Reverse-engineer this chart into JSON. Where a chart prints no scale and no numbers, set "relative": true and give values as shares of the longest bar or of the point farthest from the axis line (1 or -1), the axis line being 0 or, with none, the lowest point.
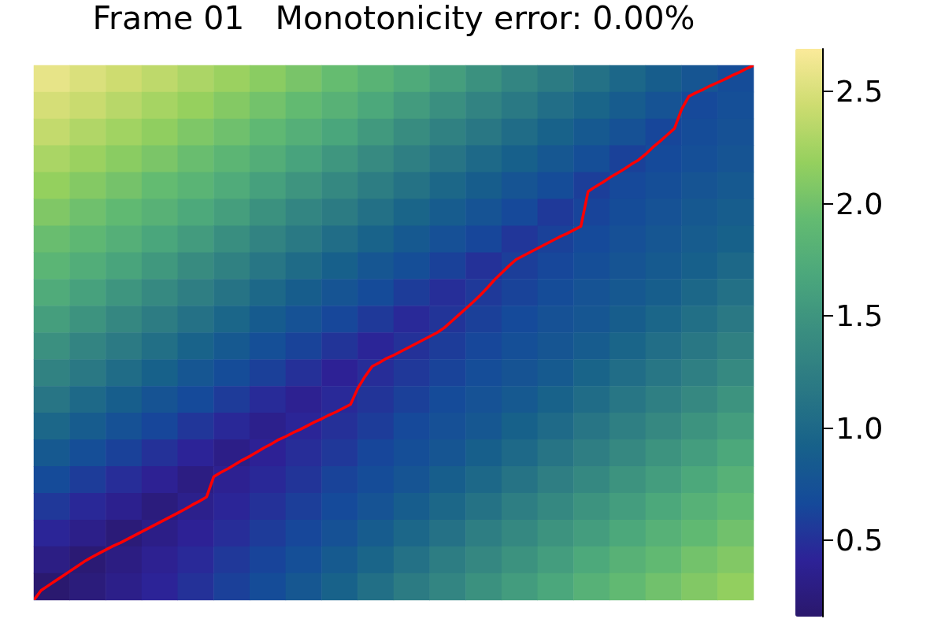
{
  "chart_data": [
    {
      "type": "heatmap",
      "title": "Frame 01   Monotonicity error: 0.00%",
      "categories": [
        null,
        null,
        null,
        null,
        null,
        null,
        null,
        null,
        null,
        null,
        null,
        null,
        null,
        null,
        null,
        null,
        null,
        null,
        null,
        null
      ],
      "y_categories": [
        null,
        null,
        null,
        null,
        null,
        null,
        null,
        null,
        null,
        null,
        null,
        null,
        null,
        null,
        null,
        null,
        null,
        null,
        null,
        null
      ],
      "cells": [
        [
          2.58,
          2.51,
          2.44,
          2.37,
          2.29,
          2.21,
          2.13,
          2.04,
          1.94,
          1.83,
          1.72,
          1.59,
          1.46,
          1.33,
          1.21,
          1.09,
          0.98,
          0.88,
          0.79,
          0.69
        ],
        [
          2.48,
          2.42,
          2.34,
          2.26,
          2.19,
          2.1,
          2.01,
          1.92,
          1.81,
          1.69,
          1.56,
          1.44,
          1.31,
          1.18,
          1.06,
          0.96,
          0.86,
          0.76,
          0.66,
          0.72
        ],
        [
          2.39,
          2.31,
          2.24,
          2.16,
          2.07,
          1.99,
          1.89,
          1.78,
          1.67,
          1.54,
          1.41,
          1.28,
          1.16,
          1.04,
          0.93,
          0.83,
          0.74,
          0.64,
          0.69,
          0.74
        ],
        [
          2.28,
          2.21,
          2.13,
          2.05,
          1.96,
          1.86,
          1.76,
          1.64,
          1.51,
          1.39,
          1.26,
          1.13,
          1.01,
          0.91,
          0.81,
          0.71,
          0.61,
          0.67,
          0.72,
          0.78
        ],
        [
          2.18,
          2.1,
          2.02,
          1.93,
          1.84,
          1.73,
          1.61,
          1.49,
          1.36,
          1.23,
          1.11,
          0.99,
          0.88,
          0.78,
          0.69,
          0.59,
          0.66,
          0.71,
          0.78,
          0.83
        ],
        [
          2.08,
          1.99,
          1.9,
          1.81,
          1.7,
          1.59,
          1.46,
          1.33,
          1.21,
          1.08,
          0.96,
          0.86,
          0.76,
          0.66,
          0.56,
          0.63,
          0.69,
          0.75,
          0.82,
          0.87
        ],
        [
          1.96,
          1.88,
          1.78,
          1.67,
          1.56,
          1.43,
          1.31,
          1.18,
          1.05,
          0.94,
          0.83,
          0.73,
          0.64,
          0.54,
          0.61,
          0.67,
          0.73,
          0.8,
          0.86,
          0.92
        ],
        [
          1.85,
          1.75,
          1.65,
          1.53,
          1.4,
          1.28,
          1.15,
          1.03,
          0.91,
          0.8,
          0.71,
          0.61,
          0.51,
          0.59,
          0.65,
          0.71,
          0.78,
          0.84,
          0.91,
          1.0
        ],
        [
          1.73,
          1.62,
          1.5,
          1.38,
          1.25,
          1.12,
          1.0,
          0.88,
          0.78,
          0.68,
          0.58,
          0.49,
          0.56,
          0.62,
          0.69,
          0.76,
          0.82,
          0.89,
          0.99,
          1.08
        ],
        [
          1.59,
          1.48,
          1.35,
          1.22,
          1.1,
          0.97,
          0.85,
          0.75,
          0.65,
          0.56,
          0.46,
          0.53,
          0.6,
          0.67,
          0.74,
          0.8,
          0.88,
          0.97,
          1.07,
          1.17
        ],
        [
          1.45,
          1.32,
          1.2,
          1.07,
          0.94,
          0.83,
          0.72,
          0.62,
          0.53,
          0.43,
          0.51,
          0.58,
          0.65,
          0.72,
          0.79,
          0.86,
          0.96,
          1.06,
          1.16,
          1.27
        ],
        [
          1.29,
          1.17,
          1.04,
          0.92,
          0.8,
          0.69,
          0.6,
          0.5,
          0.4,
          0.48,
          0.55,
          0.62,
          0.7,
          0.77,
          0.84,
          0.95,
          1.05,
          1.15,
          1.26,
          1.38
        ],
        [
          1.14,
          1.01,
          0.89,
          0.77,
          0.67,
          0.57,
          0.47,
          0.38,
          0.46,
          0.53,
          0.6,
          0.68,
          0.75,
          0.83,
          0.93,
          1.04,
          1.15,
          1.26,
          1.37,
          1.48
        ],
        [
          0.98,
          0.86,
          0.74,
          0.64,
          0.54,
          0.45,
          0.35,
          0.43,
          0.5,
          0.58,
          0.66,
          0.73,
          0.81,
          0.92,
          1.02,
          1.14,
          1.26,
          1.37,
          1.48,
          1.58
        ],
        [
          0.83,
          0.71,
          0.61,
          0.51,
          0.42,
          0.32,
          0.4,
          0.48,
          0.55,
          0.64,
          0.71,
          0.79,
          0.9,
          1.01,
          1.13,
          1.25,
          1.37,
          1.48,
          1.58,
          1.69
        ],
        [
          0.68,
          0.58,
          0.48,
          0.39,
          0.29,
          0.38,
          0.45,
          0.53,
          0.62,
          0.69,
          0.78,
          0.89,
          1.0,
          1.12,
          1.25,
          1.36,
          1.48,
          1.58,
          1.69,
          1.8
        ],
        [
          0.55,
          0.45,
          0.36,
          0.26,
          0.35,
          0.43,
          0.51,
          0.59,
          0.67,
          0.76,
          0.87,
          0.99,
          1.11,
          1.24,
          1.36,
          1.48,
          1.58,
          1.69,
          1.8,
          1.9
        ],
        [
          0.43,
          0.33,
          0.23,
          0.32,
          0.4,
          0.48,
          0.57,
          0.65,
          0.74,
          0.86,
          0.98,
          1.1,
          1.24,
          1.36,
          1.48,
          1.58,
          1.69,
          1.8,
          1.9,
          2.0
        ],
        [
          0.3,
          0.21,
          0.29,
          0.38,
          0.46,
          0.55,
          0.63,
          0.72,
          0.84,
          0.96,
          1.09,
          1.23,
          1.35,
          1.47,
          1.58,
          1.7,
          1.81,
          1.91,
          2.01,
          2.09
        ],
        [
          0.18,
          0.25,
          0.33,
          0.42,
          0.51,
          0.6,
          0.69,
          0.81,
          0.93,
          1.07,
          1.21,
          1.33,
          1.46,
          1.57,
          1.68,
          1.8,
          1.91,
          2.0,
          2.09,
          2.17
        ]
      ],
      "clim": [
        0.16,
        2.69
      ],
      "cticks": [
        0.5,
        {
          "value": 1,
          "label": "1.0"
        },
        1.5,
        {
          "value": 2,
          "label": "2.0"
        },
        2.5
      ]
    },
    {
      "type": "line",
      "relative": true,
      "color": "#ff0000",
      "categories": [
        null,
        null,
        null,
        null,
        null,
        null,
        null,
        null,
        null,
        null,
        null,
        null,
        null,
        null,
        null,
        null,
        null,
        null,
        null,
        null,
        null,
        null,
        null,
        null,
        null,
        null,
        null,
        null,
        null,
        null,
        null,
        null,
        null,
        null,
        null,
        null,
        null,
        null,
        null,
        null,
        null,
        null,
        null,
        null,
        null,
        null,
        null,
        null,
        null,
        null,
        null,
        null,
        null,
        null,
        null,
        null,
        null,
        null,
        null,
        null,
        null,
        null,
        null,
        null,
        null,
        null,
        null,
        null,
        null,
        null,
        null,
        null,
        null,
        null,
        null,
        null,
        null,
        null,
        null,
        null,
        null,
        null,
        null,
        null,
        null,
        null,
        null,
        null,
        null,
        null,
        null,
        null,
        null,
        null,
        null,
        null,
        null,
        null,
        null,
        null,
        null
      ],
      "values": [
        0,
        0.018,
        0.027,
        0.036,
        0.045,
        0.054,
        0.063,
        0.072,
        0.08,
        0.087,
        0.094,
        0.101,
        0.107,
        0.114,
        0.121,
        0.128,
        0.135,
        0.142,
        0.149,
        0.156,
        0.163,
        0.17,
        0.178,
        0.185,
        0.193,
        0.231,
        0.239,
        0.246,
        0.254,
        0.262,
        0.269,
        0.277,
        0.285,
        0.292,
        0.3,
        0.306,
        0.313,
        0.319,
        0.326,
        0.333,
        0.339,
        0.346,
        0.352,
        0.359,
        0.366,
        0.396,
        0.418,
        0.437,
        0.444,
        0.452,
        0.458,
        0.465,
        0.472,
        0.479,
        0.486,
        0.493,
        0.5,
        0.509,
        0.521,
        0.533,
        0.545,
        0.557,
        0.57,
        0.584,
        0.599,
        0.612,
        0.625,
        0.637,
        0.644,
        0.651,
        0.658,
        0.665,
        0.672,
        0.679,
        0.685,
        0.692,
        0.699,
        0.764,
        0.773,
        0.781,
        0.79,
        0.798,
        0.806,
        0.815,
        0.823,
        0.834,
        0.847,
        0.858,
        0.87,
        0.882,
        0.918,
        0.942,
        0.949,
        0.955,
        0.962,
        0.968,
        0.974,
        0.981,
        0.987,
        0.994,
        1
      ]
    }
  ]
}
